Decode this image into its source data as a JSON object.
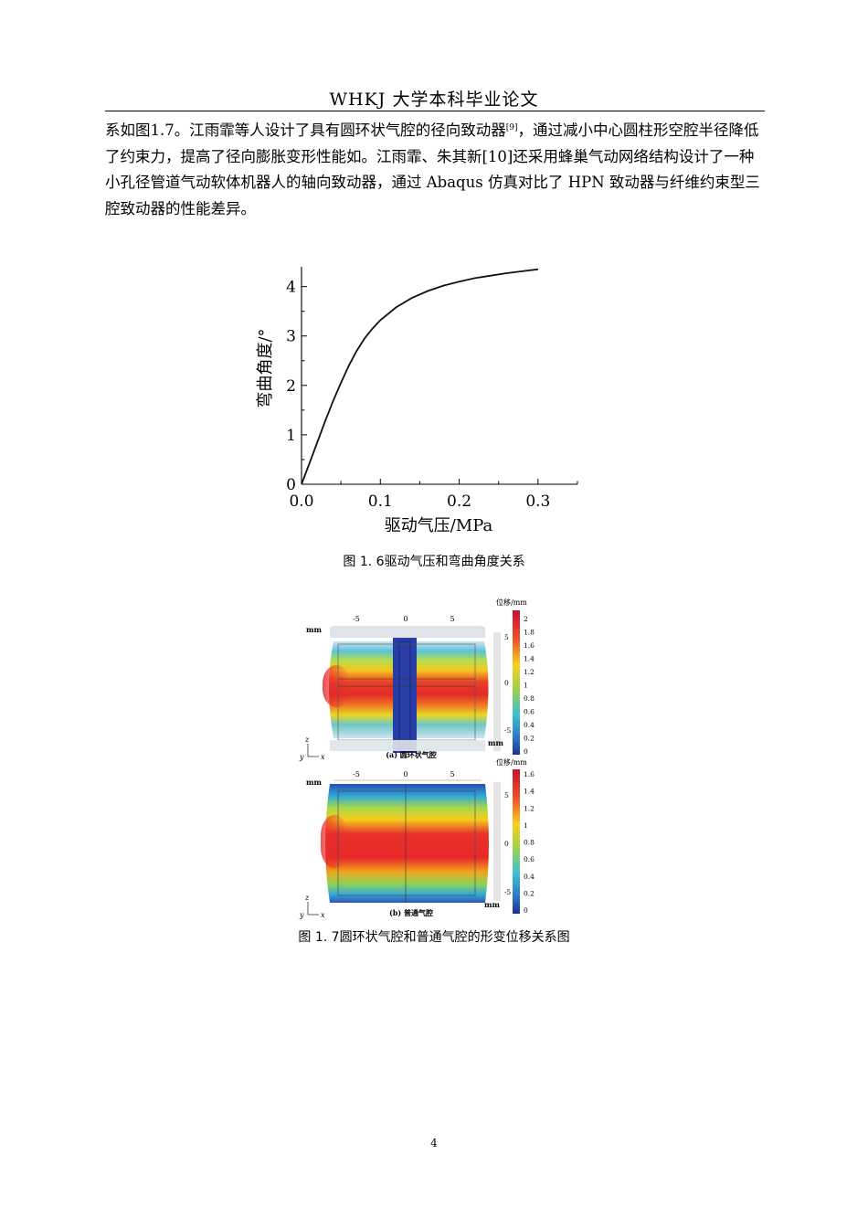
{
  "header": {
    "title": "WHKJ 大学本科毕业论文"
  },
  "body": {
    "paragraph_part1": "系如图1.7。江雨霏等人设计了具有圆环状气腔的径向致动器",
    "citation": "[9]",
    "paragraph_part2": "，通过减小中心圆柱形空腔半径降低了约束力，提高了径向膨胀变形性能如。江雨霏、朱其新[10]还采用蜂巢气动网络结构设计了一种小孔径管道气动软体机器人的轴向致动器，通过 Abaqus 仿真对比了 HPN 致动器与纤维约束型三腔致动器的性能差异。"
  },
  "figure1": {
    "caption": "图 1. 6驱动气压和弯曲角度关系"
  },
  "chart_data": {
    "type": "line",
    "xlabel": "驱动气压/MPa",
    "ylabel": "弯曲角度/°",
    "xlim": [
      0,
      0.35
    ],
    "ylim": [
      0,
      4.4
    ],
    "x_ticks": [
      "0.0",
      "0.1",
      "0.2",
      "0.3"
    ],
    "x_tick_values": [
      0,
      0.1,
      0.2,
      0.3
    ],
    "y_ticks": [
      "0",
      "1",
      "2",
      "3",
      "4"
    ],
    "y_tick_values": [
      0,
      1,
      2,
      3,
      4
    ],
    "grid": false,
    "series": [
      {
        "x": [
          0,
          0.01,
          0.02,
          0.03,
          0.04,
          0.05,
          0.06,
          0.07,
          0.08,
          0.09,
          0.1,
          0.12,
          0.14,
          0.16,
          0.18,
          0.2,
          0.22,
          0.24,
          0.26,
          0.28,
          0.3
        ],
        "y": [
          0,
          0.42,
          0.85,
          1.28,
          1.68,
          2.05,
          2.4,
          2.7,
          2.95,
          3.15,
          3.32,
          3.58,
          3.77,
          3.91,
          4.02,
          4.1,
          4.17,
          4.22,
          4.27,
          4.31,
          4.35
        ],
        "color": "#111111"
      }
    ]
  },
  "figure2": {
    "caption": "图 1. 7圆环状气腔和普通气腔的形变位移关系图",
    "panel_a": {
      "label": "(a) 圆环状气腔",
      "unit": "mm",
      "legend_title": "位移/mm",
      "legend_ticks": [
        "2",
        "1.8",
        "1.6",
        "1.4",
        "1.2",
        "1",
        "0.8",
        "0.6",
        "0.4",
        "0.2",
        "0"
      ],
      "x_ticks": [
        "-5",
        "0",
        "5"
      ],
      "z_ticks": [
        "5",
        "0",
        "-5"
      ],
      "axis_z": "z",
      "axis_y": "y",
      "axis_x": "x"
    },
    "panel_b": {
      "label": "(b) 普通气腔",
      "unit": "mm",
      "legend_title": "位移/mm",
      "legend_ticks": [
        "1.6",
        "1.4",
        "1.2",
        "1",
        "0.8",
        "0.6",
        "0.4",
        "0.2",
        "0"
      ],
      "x_ticks": [
        "-5",
        "0",
        "5"
      ],
      "z_ticks": [
        "5",
        "0",
        "-5"
      ],
      "axis_z": "z",
      "axis_y": "y",
      "axis_x": "x"
    },
    "colors": {
      "max": "#e8282a",
      "mid": "#f5e21c",
      "low": "#2db0d8",
      "min": "#24389a"
    }
  },
  "page_number": "4"
}
